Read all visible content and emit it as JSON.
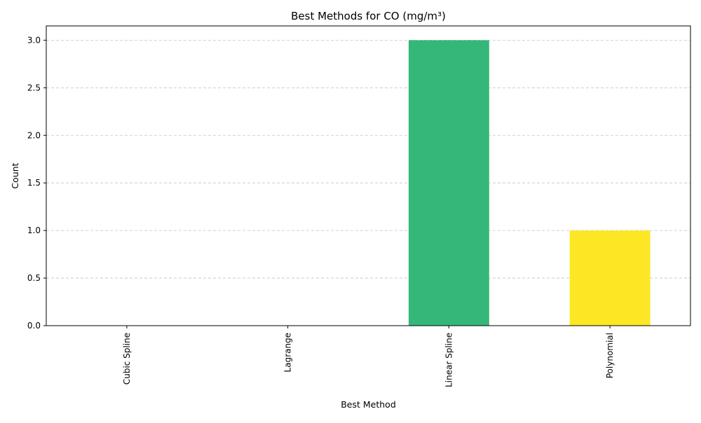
{
  "chart_data": {
    "type": "bar",
    "title": "Best Methods for CO (mg/m³)",
    "xlabel": "Best Method",
    "ylabel": "Count",
    "categories": [
      "Cubic Spline",
      "Lagrange",
      "Linear Spline",
      "Polynomial"
    ],
    "values": [
      0,
      0,
      3,
      1
    ],
    "colors": [
      "#440154",
      "#31688e",
      "#35b779",
      "#fde725"
    ],
    "ylim": [
      0,
      3.15
    ],
    "yticks": [
      0.0,
      0.5,
      1.0,
      1.5,
      2.0,
      2.5,
      3.0
    ],
    "ytick_labels": [
      "0.0",
      "0.5",
      "1.0",
      "1.5",
      "2.0",
      "2.5",
      "3.0"
    ],
    "grid": "y-dashed",
    "legend": "none"
  }
}
